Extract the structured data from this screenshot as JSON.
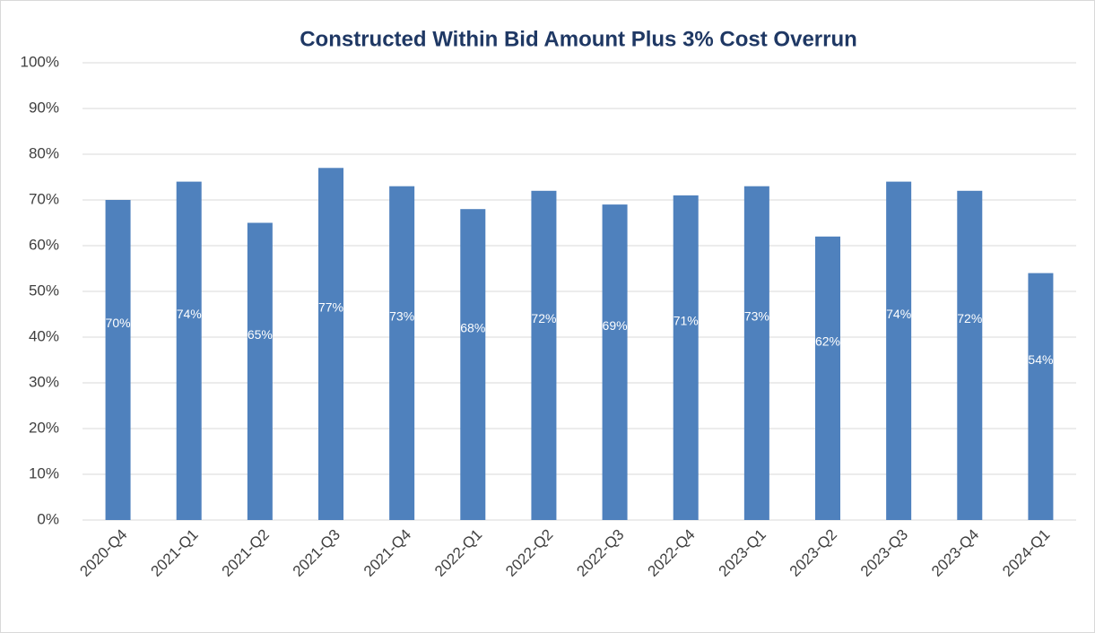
{
  "chart_data": {
    "type": "bar",
    "title": "Constructed Within Bid Amount Plus 3% Cost Overrun",
    "categories": [
      "2020-Q4",
      "2021-Q1",
      "2021-Q2",
      "2021-Q3",
      "2021-Q4",
      "2022-Q1",
      "2022-Q2",
      "2022-Q3",
      "2022-Q4",
      "2023-Q1",
      "2023-Q2",
      "2023-Q3",
      "2023-Q4",
      "2024-Q1"
    ],
    "values": [
      70,
      74,
      65,
      77,
      73,
      68,
      72,
      69,
      71,
      73,
      62,
      74,
      72,
      54
    ],
    "value_labels": [
      "70%",
      "74%",
      "65%",
      "77%",
      "73%",
      "68%",
      "72%",
      "69%",
      "71%",
      "73%",
      "62%",
      "74%",
      "72%",
      "54%"
    ],
    "color": "#4f81bd",
    "ylim": [
      0,
      100
    ],
    "yticks": [
      {
        "value": 0,
        "label": "0%"
      },
      {
        "value": 10,
        "label": "10%"
      },
      {
        "value": 20,
        "label": "20%"
      },
      {
        "value": 30,
        "label": "30%"
      },
      {
        "value": 40,
        "label": "40%"
      },
      {
        "value": 50,
        "label": "50%"
      },
      {
        "value": 60,
        "label": "60%"
      },
      {
        "value": 70,
        "label": "70%"
      },
      {
        "value": 80,
        "label": "80%"
      },
      {
        "value": 90,
        "label": "90%"
      },
      {
        "value": 100,
        "label": "100%"
      }
    ],
    "grid": true
  }
}
